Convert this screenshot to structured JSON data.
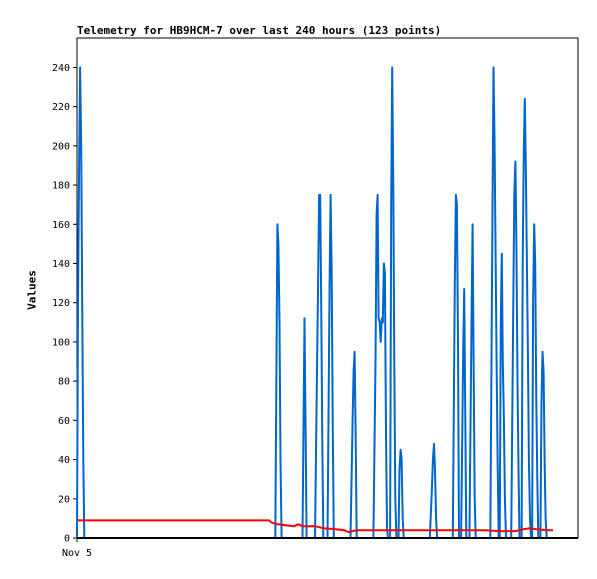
{
  "chart_data": {
    "type": "line",
    "title": "Telemetry for HB9HCM-7 over last 240 hours (123 points)",
    "xlabel": "",
    "ylabel": "Values",
    "x_tick_labels": [
      "Nov 5"
    ],
    "y_ticks": [
      0,
      20,
      40,
      60,
      80,
      100,
      120,
      140,
      160,
      180,
      200,
      220,
      240
    ],
    "xlim": [
      0,
      240
    ],
    "ylim": [
      0,
      255
    ],
    "grid": false,
    "legend": "none",
    "series": [
      {
        "color": "#0066cc",
        "points": [
          [
            0,
            0
          ],
          [
            0.5,
            120
          ],
          [
            1,
            190
          ],
          [
            1.5,
            240
          ],
          [
            2,
            200
          ],
          [
            2.5,
            120
          ],
          [
            3,
            40
          ],
          [
            3.5,
            0
          ],
          [
            95,
            0
          ],
          [
            96,
            160
          ],
          [
            96.5,
            150
          ],
          [
            97,
            110
          ],
          [
            97.5,
            40
          ],
          [
            98,
            0
          ],
          [
            108,
            0
          ],
          [
            109,
            112
          ],
          [
            109.5,
            55
          ],
          [
            110,
            0
          ],
          [
            114,
            0
          ],
          [
            115,
            90
          ],
          [
            115.5,
            130
          ],
          [
            116,
            175
          ],
          [
            116.5,
            175
          ],
          [
            117,
            120
          ],
          [
            117.5,
            50
          ],
          [
            118,
            0
          ],
          [
            120,
            0
          ],
          [
            121,
            130
          ],
          [
            121.5,
            175
          ],
          [
            122,
            135
          ],
          [
            122.5,
            60
          ],
          [
            123,
            0
          ],
          [
            131,
            0
          ],
          [
            132,
            60
          ],
          [
            132.5,
            85
          ],
          [
            133,
            95
          ],
          [
            133.5,
            50
          ],
          [
            134,
            0
          ],
          [
            142,
            0
          ],
          [
            143,
            90
          ],
          [
            143.5,
            165
          ],
          [
            144,
            175
          ],
          [
            144.5,
            112
          ],
          [
            145,
            110
          ],
          [
            145.5,
            100
          ],
          [
            146,
            112
          ],
          [
            146.5,
            110
          ],
          [
            147,
            140
          ],
          [
            147.5,
            135
          ],
          [
            148,
            60
          ],
          [
            148.5,
            5
          ],
          [
            149,
            0
          ],
          [
            150,
            0
          ],
          [
            150.5,
            170
          ],
          [
            151,
            240
          ],
          [
            151.5,
            180
          ],
          [
            152,
            90
          ],
          [
            152.5,
            20
          ],
          [
            153,
            0
          ],
          [
            154,
            0
          ],
          [
            154.5,
            35
          ],
          [
            155,
            45
          ],
          [
            155.5,
            40
          ],
          [
            156,
            10
          ],
          [
            156.5,
            0
          ],
          [
            169,
            0
          ],
          [
            170,
            25
          ],
          [
            170.5,
            40
          ],
          [
            171,
            48
          ],
          [
            171.5,
            35
          ],
          [
            172,
            10
          ],
          [
            172.5,
            0
          ],
          [
            180,
            0
          ],
          [
            181,
            130
          ],
          [
            181.5,
            175
          ],
          [
            182,
            170
          ],
          [
            182.5,
            100
          ],
          [
            183,
            0
          ],
          [
            184,
            0
          ],
          [
            185,
            95
          ],
          [
            185.5,
            127
          ],
          [
            186,
            60
          ],
          [
            186.5,
            0
          ],
          [
            188,
            0
          ],
          [
            189,
            110
          ],
          [
            189.5,
            160
          ],
          [
            190,
            90
          ],
          [
            190.5,
            20
          ],
          [
            191,
            0
          ],
          [
            198,
            0
          ],
          [
            199,
            160
          ],
          [
            199.5,
            240
          ],
          [
            200,
            205
          ],
          [
            200.5,
            150
          ],
          [
            201,
            90
          ],
          [
            201.5,
            40
          ],
          [
            202,
            0
          ],
          [
            202.5,
            0
          ],
          [
            203,
            110
          ],
          [
            203.5,
            145
          ],
          [
            204,
            90
          ],
          [
            204.5,
            60
          ],
          [
            205,
            20
          ],
          [
            205.5,
            0
          ],
          [
            208,
            0
          ],
          [
            209,
            120
          ],
          [
            209.5,
            175
          ],
          [
            210,
            192
          ],
          [
            210.5,
            150
          ],
          [
            211,
            80
          ],
          [
            211.5,
            35
          ],
          [
            212,
            0
          ],
          [
            213,
            0
          ],
          [
            213.5,
            140
          ],
          [
            214,
            195
          ],
          [
            214.5,
            224
          ],
          [
            215,
            190
          ],
          [
            215.5,
            140
          ],
          [
            216,
            95
          ],
          [
            216.5,
            40
          ],
          [
            217,
            10
          ],
          [
            217.5,
            0
          ],
          [
            218,
            0
          ],
          [
            218.5,
            120
          ],
          [
            219,
            160
          ],
          [
            219.5,
            140
          ],
          [
            220,
            70
          ],
          [
            220.5,
            30
          ],
          [
            221,
            0
          ],
          [
            222,
            0
          ],
          [
            222.5,
            70
          ],
          [
            223,
            95
          ],
          [
            223.5,
            85
          ],
          [
            224,
            40
          ],
          [
            224.5,
            10
          ],
          [
            225,
            0
          ],
          [
            240,
            0
          ]
        ]
      },
      {
        "color": "#ff0000",
        "points": [
          [
            0,
            9
          ],
          [
            92,
            9
          ],
          [
            93,
            8
          ],
          [
            96,
            7
          ],
          [
            100,
            6.5
          ],
          [
            104,
            6
          ],
          [
            106,
            7
          ],
          [
            108,
            6
          ],
          [
            114,
            6
          ],
          [
            118,
            5
          ],
          [
            124,
            4.5
          ],
          [
            128,
            4
          ],
          [
            130,
            3
          ],
          [
            132,
            3.5
          ],
          [
            134,
            4
          ],
          [
            160,
            4
          ],
          [
            180,
            4
          ],
          [
            196,
            4
          ],
          [
            202,
            3.5
          ],
          [
            210,
            3.5
          ],
          [
            214,
            4.5
          ],
          [
            217,
            5
          ],
          [
            220,
            4.5
          ],
          [
            225,
            4
          ],
          [
            228,
            4
          ]
        ]
      }
    ]
  }
}
